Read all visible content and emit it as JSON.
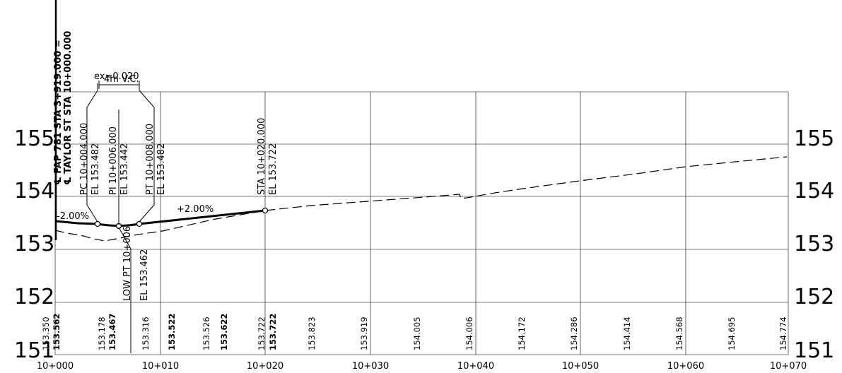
{
  "drawing": {
    "centerline": {
      "fap": "℄ FAP 781 STA 3+919.000 =",
      "taylor": "℄ TAYLOR ST STA 10+000.000"
    },
    "vertical_curve": {
      "length": "4m V.C.",
      "ex": "ex=0.020"
    },
    "points": {
      "pc_sta": "PC 10+004.000",
      "pc_el": "EL 153.482",
      "pi_sta": "PI 10+006.000",
      "pi_el": "EL 153.442",
      "pt_sta": "PT 10+008.000",
      "pt_el": "EL 153.482",
      "sta_end": "STA 10+020.000",
      "sta_end_el": "EL 153.722",
      "low_pt": "LOW PT 10+006",
      "low_el": "EL 153.462"
    },
    "grades": {
      "left": "-2.00%",
      "right": "+2.00%"
    },
    "elevation_labels": [
      "155",
      "154",
      "153",
      "152",
      "151"
    ],
    "station_labels": [
      "10+000",
      "10+010",
      "10+020",
      "10+030",
      "10+040",
      "10+050",
      "10+060",
      "10+070"
    ],
    "existing_elevations": [
      "153.350",
      "153.178",
      "153.316",
      "153.526",
      "153.722",
      "153.823",
      "153.919",
      "154.005",
      "154.006",
      "154.172",
      "154.286",
      "154.414",
      "154.568",
      "154.695",
      "154.774"
    ],
    "proposed_elevations": [
      "153.562",
      "153.467",
      "153.522",
      "153.622",
      "153.722"
    ]
  }
}
